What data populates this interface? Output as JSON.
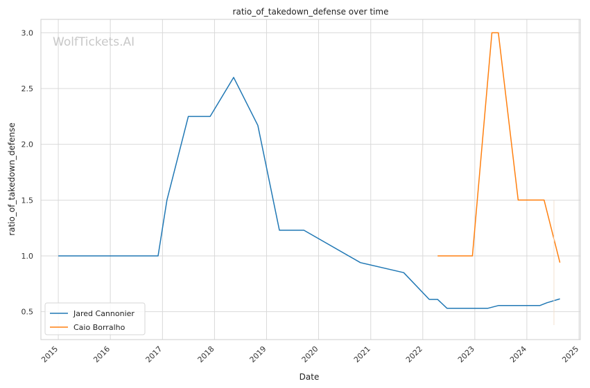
{
  "watermark": "WolfTickets.AI",
  "chart_data": {
    "type": "line",
    "title": "ratio_of_takedown_defense over time",
    "xlabel": "Date",
    "ylabel": "ratio_of_takedown_defense",
    "xlim": [
      "2014-09-01",
      "2025-01-10"
    ],
    "ylim": [
      0.25,
      3.12
    ],
    "x_ticks": [
      "2015",
      "2016",
      "2017",
      "2018",
      "2019",
      "2020",
      "2021",
      "2022",
      "2023",
      "2024",
      "2025"
    ],
    "y_ticks": [
      0.5,
      1.0,
      1.5,
      2.0,
      2.5,
      3.0
    ],
    "y_tick_labels": [
      "0.5",
      "1.0",
      "1.5",
      "2.0",
      "2.5",
      "3.0"
    ],
    "grid": true,
    "legend_position": "lower-left",
    "series": [
      {
        "name": "Jared Cannonier",
        "color": "#1f77b4",
        "points": [
          [
            "2015-01-01",
            1.0
          ],
          [
            "2016-12-01",
            1.0
          ],
          [
            "2017-02-01",
            1.5
          ],
          [
            "2017-07-01",
            2.25
          ],
          [
            "2017-12-01",
            2.25
          ],
          [
            "2018-05-15",
            2.6
          ],
          [
            "2018-11-01",
            2.17
          ],
          [
            "2019-04-01",
            1.23
          ],
          [
            "2019-09-20",
            1.23
          ],
          [
            "2020-10-20",
            0.94
          ],
          [
            "2021-08-20",
            0.85
          ],
          [
            "2022-02-15",
            0.61
          ],
          [
            "2022-04-15",
            0.61
          ],
          [
            "2022-06-20",
            0.53
          ],
          [
            "2023-04-01",
            0.53
          ],
          [
            "2023-06-15",
            0.555
          ],
          [
            "2024-04-01",
            0.555
          ],
          [
            "2024-05-20",
            0.58
          ],
          [
            "2024-08-20",
            0.615
          ]
        ]
      },
      {
        "name": "Caio Borralho",
        "color": "#ff7f0e",
        "points": [
          [
            "2022-04-15",
            1.0
          ],
          [
            "2022-12-15",
            1.0
          ],
          [
            "2023-05-01",
            3.0
          ],
          [
            "2023-06-15",
            3.0
          ],
          [
            "2023-11-01",
            1.5
          ],
          [
            "2024-05-01",
            1.5
          ],
          [
            "2024-08-20",
            0.94
          ]
        ]
      }
    ]
  }
}
